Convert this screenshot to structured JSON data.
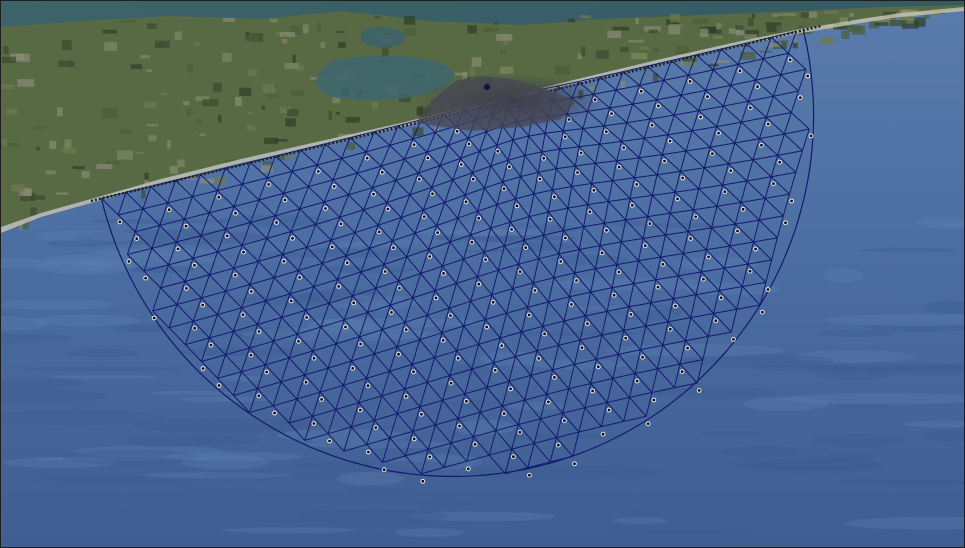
{
  "view": {
    "kind": "satellite-imagery",
    "feature": "finite-element-mesh",
    "mesh_shape": "half-disc",
    "colors": {
      "ocean": "#4e6ea3",
      "ocean_deep": "#415f95",
      "land": "#5a6b45",
      "land_dark": "#34452c",
      "water_north": "#3b5f66",
      "mesh_line": "#141a6e",
      "node_dot": "#0c0c0c",
      "node_ring": "#e8e8e8",
      "dense_zone": "#3a3a4a"
    }
  }
}
